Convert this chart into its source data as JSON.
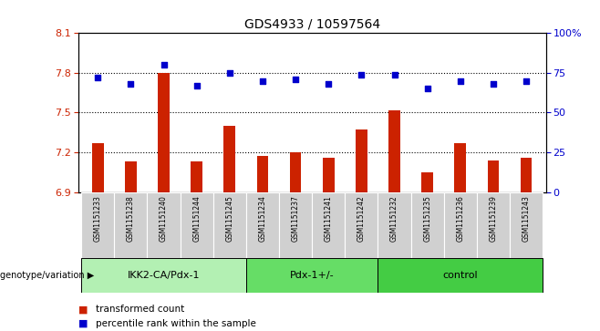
{
  "title": "GDS4933 / 10597564",
  "samples": [
    "GSM1151233",
    "GSM1151238",
    "GSM1151240",
    "GSM1151244",
    "GSM1151245",
    "GSM1151234",
    "GSM1151237",
    "GSM1151241",
    "GSM1151242",
    "GSM1151232",
    "GSM1151235",
    "GSM1151236",
    "GSM1151239",
    "GSM1151243"
  ],
  "bar_values": [
    7.27,
    7.13,
    7.8,
    7.13,
    7.4,
    7.17,
    7.2,
    7.16,
    7.37,
    7.52,
    7.05,
    7.27,
    7.14,
    7.16
  ],
  "dot_values": [
    72,
    68,
    80,
    67,
    75,
    70,
    71,
    68,
    74,
    74,
    65,
    70,
    68,
    70
  ],
  "groups": [
    {
      "label": "IKK2-CA/Pdx-1",
      "start": 0,
      "end": 5,
      "color": "#b3f0b3"
    },
    {
      "label": "Pdx-1+/-",
      "start": 5,
      "end": 9,
      "color": "#66dd66"
    },
    {
      "label": "control",
      "start": 9,
      "end": 14,
      "color": "#44cc44"
    }
  ],
  "ylim_left": [
    6.9,
    8.1
  ],
  "ylim_right": [
    0,
    100
  ],
  "yticks_left": [
    6.9,
    7.2,
    7.5,
    7.8,
    8.1
  ],
  "yticks_right": [
    0,
    25,
    50,
    75,
    100
  ],
  "bar_color": "#cc2200",
  "dot_color": "#0000cc",
  "dot_marker": "s",
  "background_color": "#ffffff",
  "plot_bg_color": "#ffffff",
  "grid_color": "#000000",
  "xlabel_group": "genotype/variation",
  "legend_bar": "transformed count",
  "legend_dot": "percentile rank within the sample",
  "tick_label_color_left": "#cc2200",
  "tick_label_color_right": "#0000cc",
  "sample_bg_color": "#d0d0d0"
}
